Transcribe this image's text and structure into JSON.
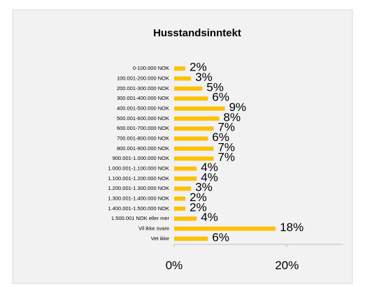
{
  "chart_data": {
    "type": "hbar",
    "title": "Husstandsinntekt",
    "categories": [
      "0-100.000 NOK",
      "100.001-200.000 NOK",
      "200.001-300.000 NOK",
      "300.001-400.000 NOK",
      "400.001-500.000 NOK",
      "500.001-600.000 NOK",
      "600.001-700.000 NOK",
      "700.001-800.000 NOK",
      "800.001-900.000 NOK",
      "900.001-1.000.000 NOK",
      "1.000.001-1.100.000 NOK",
      "1.100.001-1.200.000 NOK",
      "1.200.001-1.300.000 NOK",
      "1.300.001-1.400.000 NOK",
      "1.400.001-1.500.000 NOK",
      "1.500.001 NOK eller mer",
      "Vil ikke svare",
      "Vet ikke"
    ],
    "values": [
      2,
      3,
      5,
      6,
      9,
      8,
      7,
      6,
      7,
      7,
      4,
      4,
      3,
      2,
      2,
      4,
      18,
      6
    ],
    "value_labels": [
      "2%",
      "3%",
      "5%",
      "6%",
      "9%",
      "8%",
      "7%",
      "6%",
      "7%",
      "7%",
      "4%",
      "4%",
      "3%",
      "2%",
      "2%",
      "4%",
      "18%",
      "6%"
    ],
    "color": "#ffc000",
    "xlim": [
      0,
      30
    ],
    "xticks": [
      {
        "value": 0,
        "label": "0%"
      },
      {
        "value": 20,
        "label": "20%"
      }
    ]
  }
}
